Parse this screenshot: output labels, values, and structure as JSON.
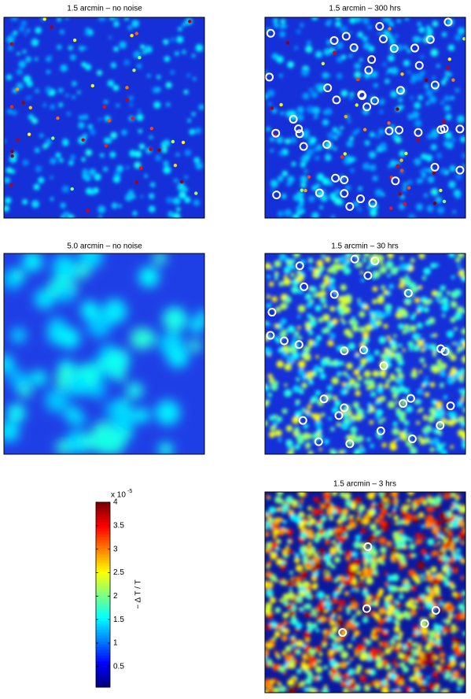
{
  "panels": [
    {
      "title": "1.5 arcmin  –  no noise"
    },
    {
      "title": "1.5 arcmin  –  300 hrs"
    },
    {
      "title": "5.0 arcmin  –  no noise"
    },
    {
      "title": "1.5 arcmin  –  30 hrs"
    },
    {
      "title": "1.5 arcmin  –  3 hrs"
    }
  ],
  "colorbar": {
    "label": "− Δ T / T",
    "multiplier": "x 10",
    "exponent": "-5",
    "lim": [
      0.06,
      4
    ],
    "ticks": [
      0.5,
      1,
      1.5,
      2,
      2.5,
      3,
      3.5,
      4
    ]
  }
}
